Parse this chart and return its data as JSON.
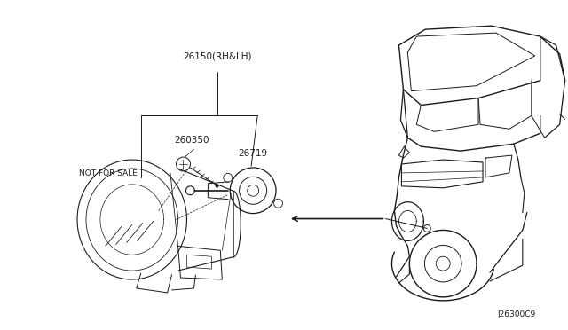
{
  "bg_color": "#ffffff",
  "line_color": "#1a1a1a",
  "part_labels": {
    "26150": "26150(RH&LH)",
    "260350": "260350",
    "26719": "26719",
    "not_for_sale": "NOT FOR SALE",
    "diagram_code": "J26300C9"
  }
}
